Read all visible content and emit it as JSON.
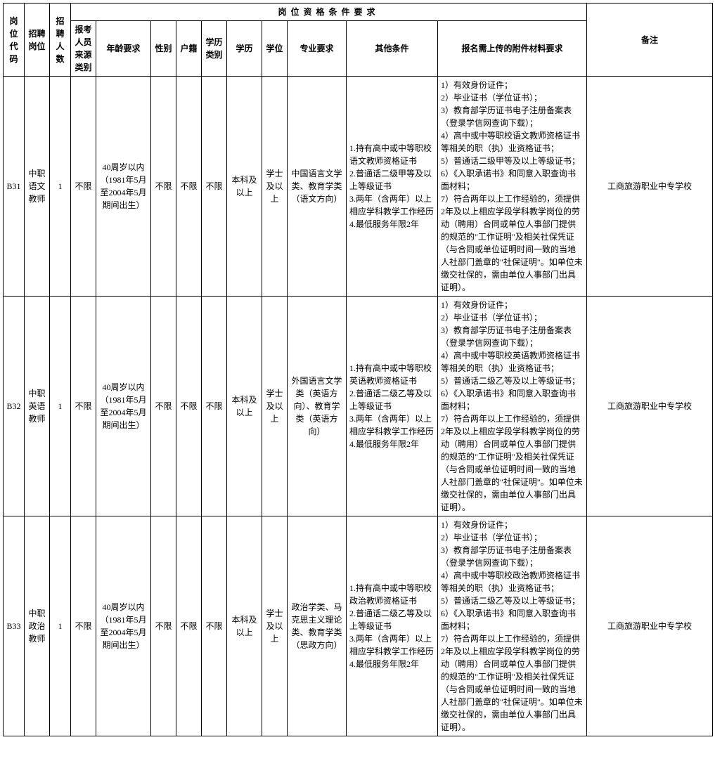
{
  "table": {
    "border_color": "#000000",
    "background_color": "#ffffff",
    "font_family": "SimSun",
    "header_fontsize": 12,
    "cell_fontsize": 12,
    "header": {
      "col_code": "岗位代码",
      "col_position": "招聘岗位",
      "col_count": "招聘人数",
      "group_qual": "岗位资格条件要求",
      "col_source": "报考人员来源类别",
      "col_age": "年龄要求",
      "col_gender": "性别",
      "col_hukou": "户籍",
      "col_edu_type": "学历类别",
      "col_edu": "学历",
      "col_degree": "学位",
      "col_major": "专业要求",
      "col_other": "其他条件",
      "col_attach": "报名需上传的附件材料要求",
      "col_remark": "备注"
    },
    "rows": [
      {
        "code": "B31",
        "position": "中职语文教师",
        "count": "1",
        "source": "不限",
        "age": "40周岁以内（1981年5月至2004年5月期间出生）",
        "gender": "不限",
        "hukou": "不限",
        "edu_type": "不限",
        "edu": "本科及以上",
        "degree": "学士及以上",
        "major": "中国语言文学类、教育学类（语文方向）",
        "other": "1.持有高中或中等职校语文教师资格证书\n2.普通话二级甲等及以上等级证书\n3.两年（含两年）以上相应学科教学工作经历\n4.最低服务年限2年",
        "attach": "1）有效身份证件；\n2）毕业证书（学位证书）；\n3）教育部学历证书电子注册备案表（登录学信网查询下载）；\n4）高中或中等职校语文教师资格证书等相关的职（执）业资格证书；\n5）普通话二级甲等及以上等级证书；\n6）《入职承诺书》和同意入职查询书面材料；\n7）符合两年以上工作经验的，须提供2年及以上相应学段学科教学岗位的劳动（聘用）合同或单位人事部门提供的规范的\"工作证明\"及相关社保凭证（与合同或单位证明时间一致的当地人社部门盖章的\"社保证明\"。如单位未缴交社保的，需由单位人事部门出具证明）。",
        "remark": "工商旅游职业中专学校"
      },
      {
        "code": "B32",
        "position": "中职英语教师",
        "count": "1",
        "source": "不限",
        "age": "40周岁以内（1981年5月至2004年5月期间出生）",
        "gender": "不限",
        "hukou": "不限",
        "edu_type": "不限",
        "edu": "本科及以上",
        "degree": "学士及以上",
        "major": "外国语言文学类（英语方向）、教育学类（英语方向）",
        "other": "1.持有高中或中等职校英语教师资格证书\n2.普通话二级乙等及以上等级证书\n3.两年（含两年）以上相应学科教学工作经历\n4.最低服务年限2年",
        "attach": "1）有效身份证件；\n2）毕业证书（学位证书）；\n3）教育部学历证书电子注册备案表（登录学信网查询下载）；\n4）高中或中等职校英语教师资格证书等相关的职（执）业资格证书；\n5）普通话二级乙等及以上等级证书；\n6）《入职承诺书》和同意入职查询书面材料；\n7）符合两年以上工作经验的，须提供2年及以上相应学段学科教学岗位的劳动（聘用）合同或单位人事部门提供的规范的\"工作证明\"及相关社保凭证（与合同或单位证明时间一致的当地人社部门盖章的\"社保证明\"。如单位未缴交社保的，需由单位人事部门出具证明）。",
        "remark": "工商旅游职业中专学校"
      },
      {
        "code": "B33",
        "position": "中职政治教师",
        "count": "1",
        "source": "不限",
        "age": "40周岁以内（1981年5月至2004年5月期间出生）",
        "gender": "不限",
        "hukou": "不限",
        "edu_type": "不限",
        "edu": "本科及以上",
        "degree": "学士及以上",
        "major": "政治学类、马克思主义理论类、教育学类（思政方向）",
        "other": "1.持有高中或中等职校政治教师资格证书\n2.普通话二级乙等及以上等级证书\n3.两年（含两年）以上相应学科教学工作经历\n4.最低服务年限2年",
        "attach": "1）有效身份证件；\n2）毕业证书（学位证书）；\n3）教育部学历证书电子注册备案表（登录学信网查询下载）；\n4）高中或中等职校政治教师资格证书等相关的职（执）业资格证书；\n5）普通话二级乙等及以上等级证书；\n6）《入职承诺书》和同意入职查询书面材料；\n7）符合两年以上工作经验的，须提供2年及以上相应学段学科教学岗位的劳动（聘用）合同或单位人事部门提供的规范的\"工作证明\"及相关社保凭证（与合同或单位证明时间一致的当地人社部门盖章的\"社保证明\"。如单位未缴交社保的，需由单位人事部门出具证明）。",
        "remark": "工商旅游职业中专学校"
      }
    ]
  }
}
